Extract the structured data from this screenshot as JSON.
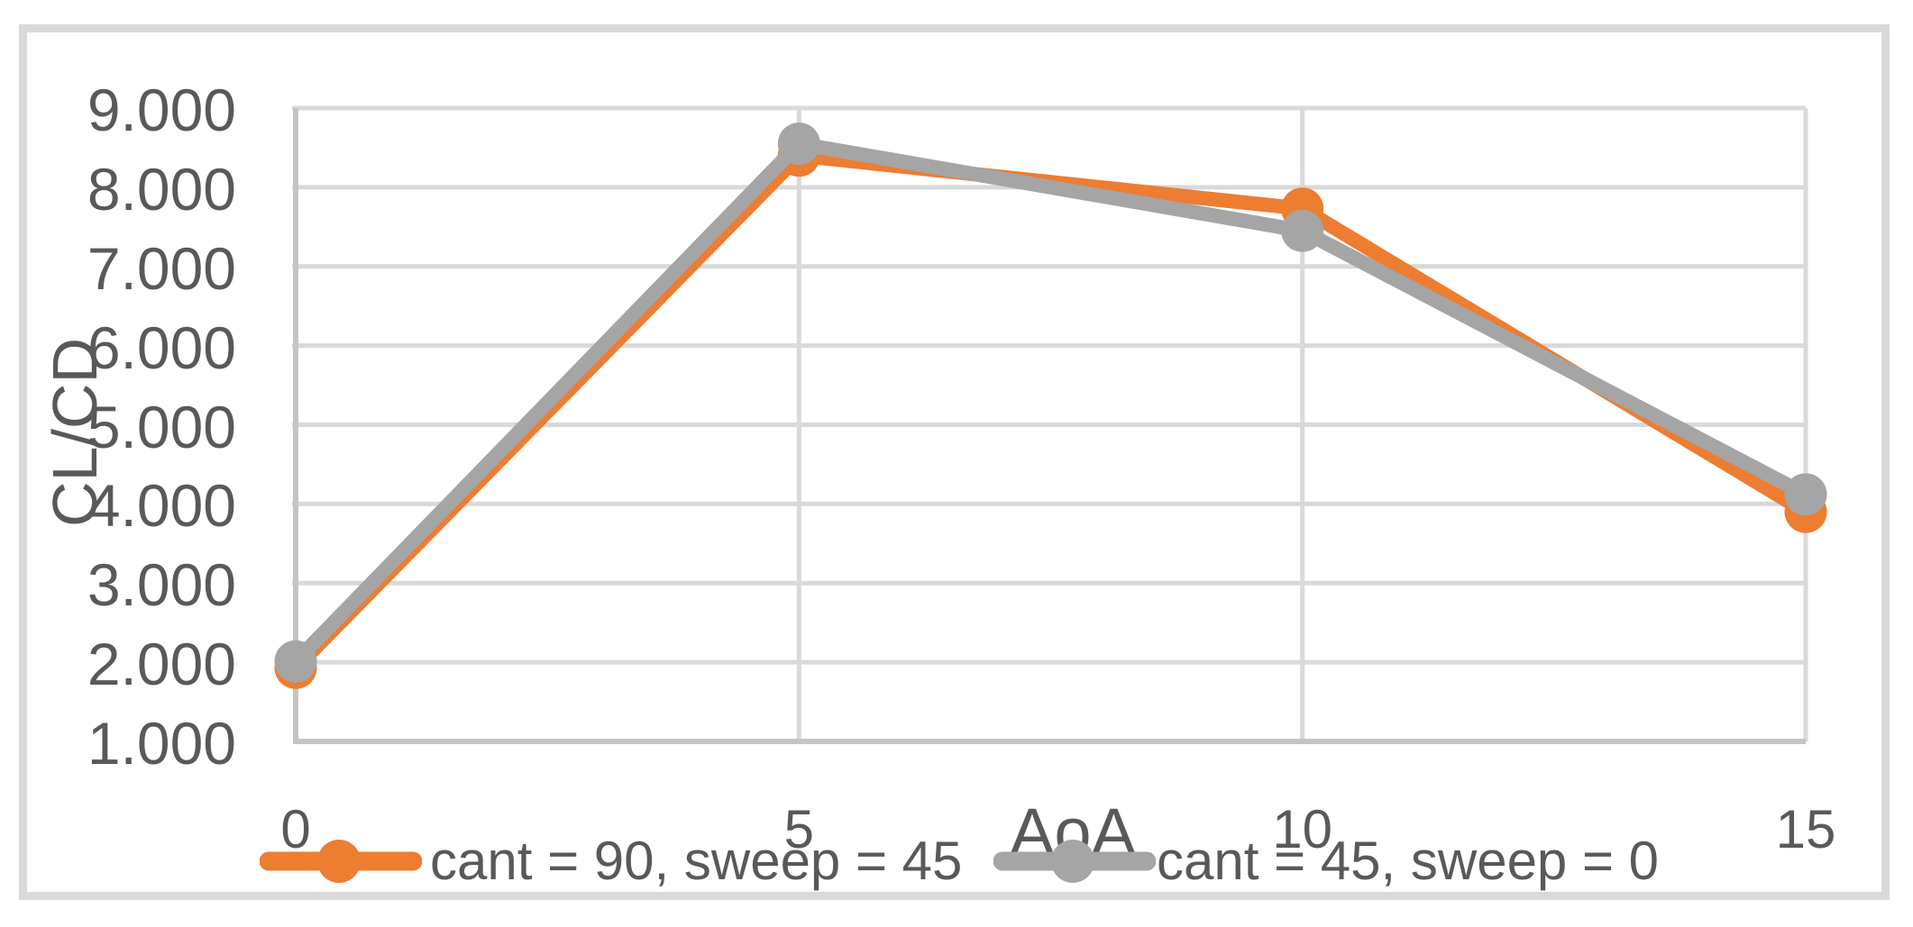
{
  "chart_data": {
    "type": "line",
    "title": "",
    "xlabel": "AoA",
    "ylabel": "CL/CD",
    "x": [
      0,
      5,
      10,
      15
    ],
    "x_tick_labels": [
      "0",
      "5",
      "10",
      "15"
    ],
    "y_tick_labels": [
      "1.000",
      "2.000",
      "3.000",
      "4.000",
      "5.000",
      "6.000",
      "7.000",
      "8.000",
      "9.000"
    ],
    "xlim": [
      0,
      15
    ],
    "ylim": [
      1,
      9
    ],
    "y_tick_step": 1,
    "grid": true,
    "legend_position": "bottom",
    "series": [
      {
        "name": "cant = 90, sweep = 45",
        "color": "#ED7D31",
        "values": [
          1.93,
          8.4,
          7.73,
          3.9
        ]
      },
      {
        "name": "cant = 45, sweep = 0",
        "color": "#A5A5A5",
        "values": [
          2.01,
          8.55,
          7.45,
          4.12
        ]
      }
    ]
  },
  "colors": {
    "text": "#595959",
    "gridline": "#D9D9D9",
    "axis_line": "#C4C4C4",
    "border": "#D9D9D9",
    "background": "#FFFFFF"
  }
}
